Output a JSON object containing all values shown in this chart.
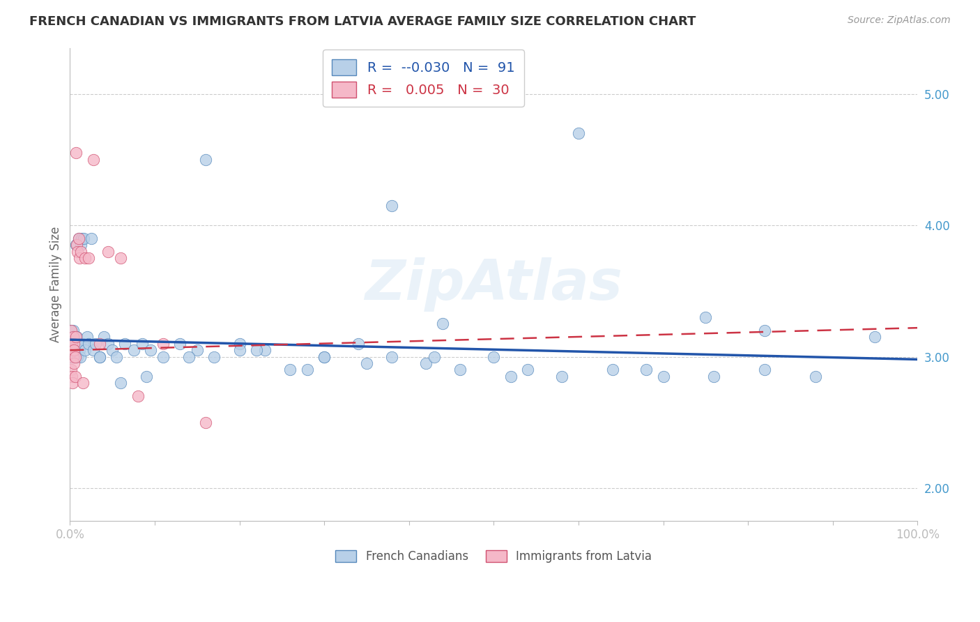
{
  "title": "FRENCH CANADIAN VS IMMIGRANTS FROM LATVIA AVERAGE FAMILY SIZE CORRELATION CHART",
  "source": "Source: ZipAtlas.com",
  "ylabel": "Average Family Size",
  "watermark": "ZipAtlas",
  "xlim": [
    0.0,
    1.0
  ],
  "ylim": [
    1.75,
    5.35
  ],
  "yticks": [
    2.0,
    3.0,
    4.0,
    5.0
  ],
  "xtick_pos": [
    0.0,
    0.1,
    0.2,
    0.3,
    0.4,
    0.5,
    0.6,
    0.7,
    0.8,
    0.9,
    1.0
  ],
  "xtick_labels": [
    "0.0%",
    "",
    "",
    "",
    "",
    "",
    "",
    "",
    "",
    "",
    "100.0%"
  ],
  "legend_blue_label": "French Canadians",
  "legend_pink_label": "Immigrants from Latvia",
  "R_blue": "-0.030",
  "N_blue": "91",
  "R_pink": "0.005",
  "N_pink": "30",
  "blue_face": "#b8d0e8",
  "blue_edge": "#5588bb",
  "pink_face": "#f5b8c8",
  "pink_edge": "#d05070",
  "trend_blue": "#2255aa",
  "trend_pink": "#cc3344",
  "axis_label_color": "#4499cc",
  "grid_color": "#cccccc",
  "title_color": "#333333",
  "trend_blue_y0": 3.13,
  "trend_blue_y1": 2.98,
  "trend_pink_y0": 3.05,
  "trend_pink_y1": 3.22,
  "blue_scatter_x": [
    0.001,
    0.001,
    0.002,
    0.002,
    0.002,
    0.003,
    0.003,
    0.003,
    0.003,
    0.004,
    0.004,
    0.004,
    0.004,
    0.005,
    0.005,
    0.005,
    0.005,
    0.006,
    0.006,
    0.006,
    0.006,
    0.007,
    0.007,
    0.007,
    0.008,
    0.008,
    0.008,
    0.009,
    0.009,
    0.01,
    0.01,
    0.011,
    0.012,
    0.013,
    0.014,
    0.015,
    0.016,
    0.018,
    0.02,
    0.022,
    0.025,
    0.028,
    0.03,
    0.035,
    0.04,
    0.045,
    0.05,
    0.055,
    0.065,
    0.075,
    0.085,
    0.095,
    0.11,
    0.13,
    0.15,
    0.17,
    0.2,
    0.23,
    0.26,
    0.3,
    0.34,
    0.38,
    0.42,
    0.46,
    0.5,
    0.54,
    0.58,
    0.64,
    0.7,
    0.76,
    0.82,
    0.88,
    0.95,
    0.16,
    0.22,
    0.3,
    0.38,
    0.44,
    0.52,
    0.6,
    0.68,
    0.75,
    0.82,
    0.43,
    0.35,
    0.28,
    0.2,
    0.14,
    0.09,
    0.06,
    0.035
  ],
  "blue_scatter_y": [
    3.1,
    3.2,
    3.05,
    3.15,
    3.0,
    3.1,
    3.05,
    3.15,
    3.0,
    3.1,
    3.05,
    3.2,
    3.0,
    3.15,
    3.05,
    3.1,
    3.0,
    3.15,
    3.05,
    3.1,
    3.0,
    3.85,
    3.1,
    3.05,
    3.0,
    3.15,
    3.1,
    3.05,
    3.0,
    3.9,
    3.1,
    3.05,
    3.0,
    3.85,
    3.9,
    3.1,
    3.9,
    3.05,
    3.15,
    3.1,
    3.9,
    3.05,
    3.1,
    3.0,
    3.15,
    3.1,
    3.05,
    3.0,
    3.1,
    3.05,
    3.1,
    3.05,
    3.0,
    3.1,
    3.05,
    3.0,
    3.1,
    3.05,
    2.9,
    3.0,
    3.1,
    3.0,
    2.95,
    2.9,
    3.0,
    2.9,
    2.85,
    2.9,
    2.85,
    2.85,
    2.9,
    2.85,
    3.15,
    4.5,
    3.05,
    3.0,
    4.15,
    3.25,
    2.85,
    4.7,
    2.9,
    3.3,
    3.2,
    3.0,
    2.95,
    2.9,
    3.05,
    3.0,
    2.85,
    2.8,
    3.0
  ],
  "pink_scatter_x": [
    0.001,
    0.001,
    0.002,
    0.002,
    0.003,
    0.003,
    0.004,
    0.004,
    0.005,
    0.005,
    0.005,
    0.006,
    0.006,
    0.007,
    0.007,
    0.008,
    0.009,
    0.01,
    0.011,
    0.013,
    0.015,
    0.018,
    0.022,
    0.028,
    0.035,
    0.045,
    0.06,
    0.08,
    0.11,
    0.16
  ],
  "pink_scatter_y": [
    3.2,
    2.9,
    3.1,
    2.85,
    3.05,
    2.8,
    3.15,
    3.0,
    2.95,
    3.1,
    3.05,
    2.85,
    3.0,
    3.15,
    4.55,
    3.85,
    3.8,
    3.9,
    3.75,
    3.8,
    2.8,
    3.75,
    3.75,
    4.5,
    3.1,
    3.8,
    3.75,
    2.7,
    3.1,
    2.5
  ]
}
